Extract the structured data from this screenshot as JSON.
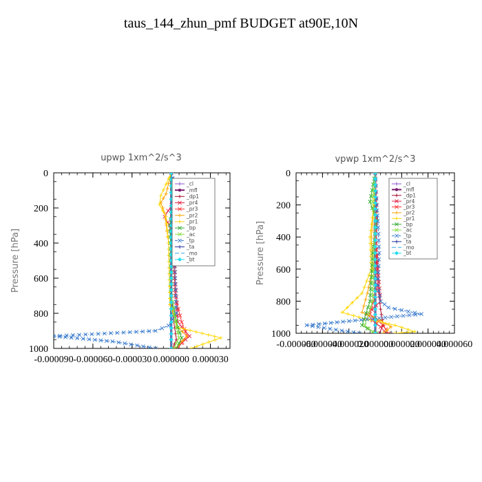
{
  "page_title": "taus_144_zhun_pmf  BUDGET at90E,10N",
  "chart_data": [
    {
      "type": "line",
      "title": "upwp   1xm^2/s^3",
      "ylabel": "Pressure [hPa]",
      "xlim": [
        -9e-05,
        4.5e-05
      ],
      "ylim": [
        1000,
        0
      ],
      "xticks": [
        -9e-05,
        -6e-05,
        -3e-05,
        0.0,
        3e-05
      ],
      "xtick_labels": [
        "-0.000090",
        "-0.000060",
        "-0.000030",
        "0.000000",
        "0.000030"
      ],
      "yticks": [
        0,
        200,
        400,
        600,
        800,
        1000
      ],
      "ytick_labels": [
        "0",
        "200",
        "400",
        "600",
        "800",
        "1000"
      ],
      "legend_position": "top-right",
      "series": [
        {
          "name": "_cl",
          "color": "#8855cc",
          "marker": "+",
          "dash": "",
          "x": [
            0,
            0,
            0,
            0,
            0,
            0,
            0,
            0
          ],
          "y": [
            0,
            150,
            300,
            500,
            700,
            850,
            950,
            1000
          ]
        },
        {
          "name": "_mfl",
          "color": "#7a1a6e",
          "marker": "dot",
          "dash": "",
          "x": [
            0,
            0,
            0,
            0,
            0,
            0,
            0,
            0
          ],
          "y": [
            0,
            150,
            300,
            500,
            700,
            850,
            950,
            1000
          ]
        },
        {
          "name": "_dp1",
          "color": "#aa1133",
          "marker": "+",
          "dash": "",
          "x": [
            0,
            1e-06,
            -1e-06,
            0,
            0,
            2e-06,
            4e-06,
            1e-06
          ],
          "y": [
            0,
            150,
            300,
            500,
            700,
            850,
            950,
            1000
          ]
        },
        {
          "name": "_pr4",
          "color": "#dd2244",
          "marker": "x",
          "dash": "",
          "x": [
            0,
            3e-06,
            -5e-06,
            2e-06,
            3e-06,
            5e-06,
            1.4e-05,
            8e-06,
            3e-06
          ],
          "y": [
            0,
            150,
            250,
            350,
            600,
            850,
            930,
            970,
            1000
          ]
        },
        {
          "name": "_pr3",
          "color": "#ff3333",
          "marker": "x",
          "dash": "",
          "x": [
            0,
            3e-06,
            4e-06,
            2e-06,
            3e-06,
            8e-06,
            1.2e-05,
            5e-06
          ],
          "y": [
            0,
            150,
            300,
            500,
            700,
            850,
            930,
            1000
          ]
        },
        {
          "name": "_pr2",
          "color": "#ffa500",
          "marker": "+",
          "dash": "",
          "x": [
            0,
            -4e-06,
            -8e-06,
            -5e-06,
            -2e-06,
            -1e-06,
            5e-06,
            1.2e-05,
            3e-06
          ],
          "y": [
            0,
            120,
            170,
            230,
            400,
            750,
            880,
            930,
            1000
          ]
        },
        {
          "name": "_pr1",
          "color": "#ffd700",
          "marker": "+",
          "dash": "",
          "x": [
            0,
            -8e-06,
            -9e-06,
            -4e-06,
            -2e-06,
            -1e-06,
            5e-06,
            3.8e-05,
            1.5e-05
          ],
          "y": [
            0,
            130,
            180,
            250,
            400,
            750,
            880,
            940,
            1000
          ]
        },
        {
          "name": "_bp",
          "color": "#33aa33",
          "marker": "x",
          "dash": "",
          "x": [
            0,
            2e-06,
            -1e-06,
            0,
            0,
            5e-06,
            8e-06,
            4e-06
          ],
          "y": [
            0,
            150,
            300,
            500,
            700,
            880,
            940,
            1000
          ]
        },
        {
          "name": "_ac",
          "color": "#88dd44",
          "marker": "x",
          "dash": "",
          "x": [
            0,
            1e-06,
            2e-06,
            0,
            0,
            4e-06,
            6e-06,
            2e-06
          ],
          "y": [
            0,
            150,
            300,
            500,
            700,
            880,
            940,
            1000
          ]
        },
        {
          "name": "_tp",
          "color": "#3377cc",
          "marker": "x",
          "dash": "4,2,1,2",
          "x": [
            0,
            4e-06,
            1.2e-05,
            4e-06,
            2e-06,
            3e-06,
            4e-06,
            -2e-06,
            -1.2e-05,
            -9e-05,
            -4.5e-05,
            -1.2e-05
          ],
          "y": [
            0,
            120,
            150,
            250,
            400,
            600,
            800,
            870,
            900,
            930,
            960,
            1000
          ]
        },
        {
          "name": "_ta",
          "color": "#223399",
          "marker": "+",
          "dash": "",
          "x": [
            0,
            0,
            0,
            0,
            0,
            0,
            0,
            0
          ],
          "y": [
            0,
            150,
            300,
            500,
            700,
            850,
            950,
            1000
          ]
        },
        {
          "name": "_mo",
          "color": "#33aaee",
          "marker": "",
          "dash": "6,3",
          "x": [
            0,
            0,
            0,
            0,
            0,
            0,
            0,
            0
          ],
          "y": [
            0,
            150,
            300,
            500,
            700,
            850,
            950,
            1000
          ]
        },
        {
          "name": "_bt",
          "color": "#22ddee",
          "marker": "diamond",
          "dash": "",
          "x": [
            0,
            0,
            0,
            0,
            0,
            0,
            0,
            0
          ],
          "y": [
            0,
            150,
            300,
            500,
            700,
            850,
            950,
            1000
          ]
        }
      ]
    },
    {
      "type": "line",
      "title": "vpwp   1xm^2/s^3",
      "ylabel": "Pressure [hPa]",
      "xlim": [
        -6e-05,
        6e-05
      ],
      "ylim": [
        1000,
        0
      ],
      "xticks": [
        -6e-05,
        -4e-05,
        -2e-05,
        0.0,
        2e-05,
        4e-05,
        6e-05
      ],
      "xtick_labels": [
        "-0.000060",
        "-0.000040",
        "-0.000020",
        "0.000000",
        "0.000020",
        "0.000040",
        "0.000060"
      ],
      "yticks": [
        0,
        200,
        400,
        600,
        800,
        1000
      ],
      "ytick_labels": [
        "0",
        "200",
        "400",
        "600",
        "800",
        "1000"
      ],
      "legend_position": "top-right",
      "series": [
        {
          "name": "_cl",
          "color": "#8855cc",
          "marker": "+",
          "dash": "",
          "x": [
            0,
            0,
            0,
            0,
            0,
            0,
            0,
            0
          ],
          "y": [
            0,
            150,
            300,
            500,
            700,
            850,
            950,
            1000
          ]
        },
        {
          "name": "_mfl",
          "color": "#7a1a6e",
          "marker": "dot",
          "dash": "",
          "x": [
            0,
            0,
            0,
            0,
            0,
            0,
            0,
            0
          ],
          "y": [
            0,
            150,
            300,
            500,
            700,
            850,
            950,
            1000
          ]
        },
        {
          "name": "_dp1",
          "color": "#aa1133",
          "marker": "+",
          "dash": "",
          "x": [
            0,
            1e-06,
            0,
            2e-06,
            4e-06,
            6e-06,
            3e-06
          ],
          "y": [
            0,
            200,
            400,
            700,
            850,
            950,
            1000
          ]
        },
        {
          "name": "_pr4",
          "color": "#dd2244",
          "marker": "x",
          "dash": "",
          "x": [
            0,
            1e-06,
            0,
            2e-06,
            4e-06,
            -6e-06,
            -2e-06,
            4e-06,
            8e-06
          ],
          "y": [
            0,
            200,
            400,
            600,
            800,
            880,
            920,
            960,
            1000
          ]
        },
        {
          "name": "_pr3",
          "color": "#ff3333",
          "marker": "x",
          "dash": "",
          "x": [
            0,
            1e-06,
            0,
            2e-06,
            -4e-06,
            6e-06,
            1e-05
          ],
          "y": [
            0,
            200,
            400,
            700,
            880,
            950,
            1000
          ]
        },
        {
          "name": "_pr2",
          "color": "#ffa500",
          "marker": "+",
          "dash": "",
          "x": [
            0,
            -1e-06,
            -3e-06,
            -2e-06,
            -6e-06,
            -1e-05,
            4e-06,
            1.2e-05,
            6e-06
          ],
          "y": [
            0,
            200,
            400,
            600,
            750,
            870,
            920,
            960,
            1000
          ]
        },
        {
          "name": "_pr1",
          "color": "#ffd700",
          "marker": "+",
          "dash": "",
          "x": [
            0,
            -1e-06,
            -4e-06,
            -3e-06,
            -1e-05,
            -2.5e-05,
            -8e-06,
            1.5e-05,
            3e-05,
            1.5e-05
          ],
          "y": [
            0,
            200,
            400,
            600,
            750,
            870,
            910,
            950,
            990,
            1000
          ]
        },
        {
          "name": "_bp",
          "color": "#33aa33",
          "marker": "x",
          "dash": "",
          "x": [
            0,
            -4e-06,
            1e-06,
            -2e-06,
            -4e-06,
            -1e-05,
            -2e-06,
            1e-06
          ],
          "y": [
            0,
            180,
            300,
            500,
            800,
            950,
            990,
            1000
          ]
        },
        {
          "name": "_ac",
          "color": "#88dd44",
          "marker": "x",
          "dash": "",
          "x": [
            0,
            -2e-06,
            0,
            -1e-06,
            -2e-06,
            -8e-06,
            -2e-06,
            0
          ],
          "y": [
            0,
            180,
            300,
            500,
            800,
            950,
            990,
            1000
          ]
        },
        {
          "name": "_tp",
          "color": "#3377cc",
          "marker": "x",
          "dash": "4,2,1,2",
          "x": [
            0,
            1e-06,
            2e-06,
            3e-06,
            2e-06,
            4e-06,
            1e-05,
            3.5e-05,
            -5.2e-05,
            -1.2e-05
          ],
          "y": [
            0,
            200,
            300,
            500,
            700,
            800,
            840,
            880,
            950,
            1000
          ]
        },
        {
          "name": "_ta",
          "color": "#223399",
          "marker": "+",
          "dash": "",
          "x": [
            0,
            0,
            0,
            0,
            0,
            0,
            0,
            0
          ],
          "y": [
            0,
            150,
            300,
            500,
            700,
            850,
            950,
            1000
          ]
        },
        {
          "name": "_mo",
          "color": "#33aaee",
          "marker": "",
          "dash": "6,3",
          "x": [
            0,
            0,
            0,
            0,
            0,
            0,
            0,
            0
          ],
          "y": [
            0,
            150,
            300,
            500,
            700,
            850,
            950,
            1000
          ]
        },
        {
          "name": "_bt",
          "color": "#22ddee",
          "marker": "diamond",
          "dash": "",
          "x": [
            0,
            0,
            0,
            0,
            0,
            0,
            0,
            0
          ],
          "y": [
            0,
            150,
            300,
            500,
            700,
            850,
            950,
            1000
          ]
        }
      ]
    }
  ]
}
